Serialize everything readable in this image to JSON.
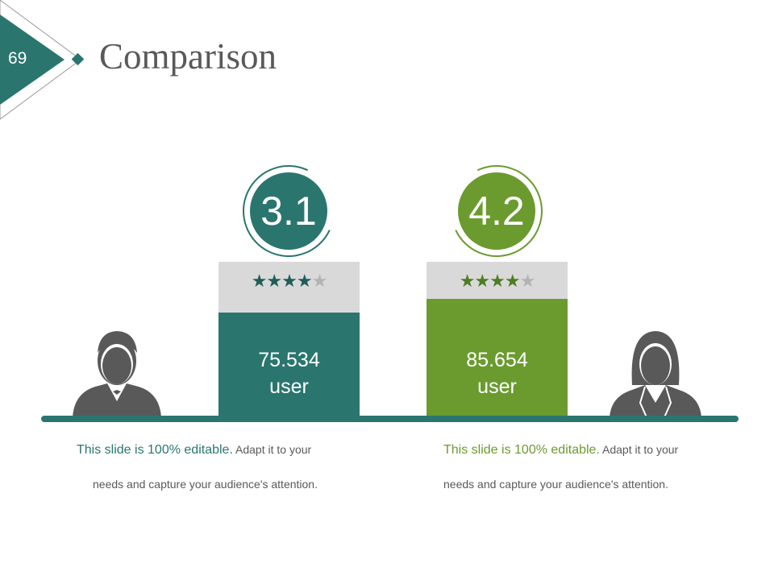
{
  "slide": {
    "number": "69",
    "title": "Comparison"
  },
  "colors": {
    "teal": "#2a766f",
    "green": "#6b9b2f",
    "gray": "#d9d9d9",
    "star_empty": "#b3b3b3"
  },
  "items": [
    {
      "score": "3.1",
      "stars": 4,
      "max_stars": 5,
      "value": "75.534",
      "unit": "user",
      "icon": "businessman-icon",
      "desc_highlight": "This slide is 100% editable.",
      "desc_rest": " Adapt it to your",
      "desc_line2": "needs and capture your audience's attention."
    },
    {
      "score": "4.2",
      "stars": 4,
      "max_stars": 5,
      "value": "85.654",
      "unit": "user",
      "icon": "businesswoman-icon",
      "desc_highlight": "This slide is 100% editable.",
      "desc_rest": " Adapt it to your",
      "desc_line2": "needs and capture your audience's attention."
    }
  ]
}
